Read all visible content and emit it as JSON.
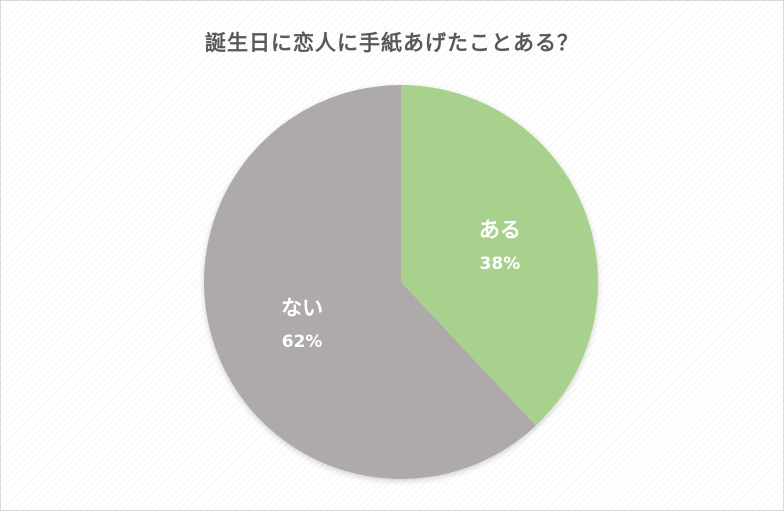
{
  "chart_data": {
    "type": "pie",
    "title": "誕生日に恋人に手紙あげたことある？",
    "slices": [
      {
        "label": "ある",
        "value": 38,
        "display": "38%",
        "color": "#a9d18e"
      },
      {
        "label": "ない",
        "value": 62,
        "display": "62%",
        "color": "#aeaaaa"
      }
    ],
    "start_angle_deg": 0,
    "direction": "clockwise",
    "legend": "none",
    "data_labels": "inside"
  }
}
